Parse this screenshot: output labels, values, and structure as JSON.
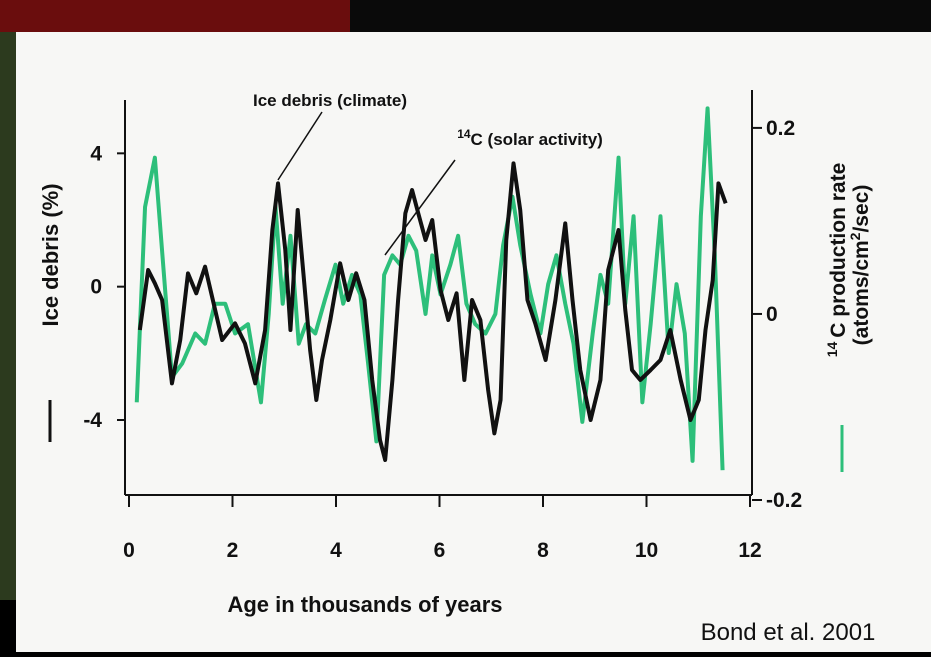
{
  "chart_data": {
    "type": "line",
    "xlabel": "Age in thousands of years",
    "ylabel": "Ice debris (%)",
    "y2label": [
      "14",
      "C production rate",
      "(atoms/cm",
      "2",
      "/sec)"
    ],
    "annotations": [
      "Ice debris (climate)",
      "14",
      "C (solar activity)"
    ],
    "source": "Bond et al. 2001",
    "xlim": [
      0,
      12
    ],
    "xticks": [
      0,
      2,
      4,
      6,
      8,
      10,
      12
    ],
    "ylim": [
      -6.4,
      5.6
    ],
    "yticks": [
      -4,
      0,
      4
    ],
    "y2lim": [
      -0.2,
      0.23
    ],
    "y2ticks": [
      -0.2,
      0,
      0.2
    ],
    "series": [
      {
        "color": "#111111",
        "axis": "y",
        "x": [
          0.21,
          0.37,
          0.5,
          0.64,
          0.83,
          0.99,
          1.14,
          1.3,
          1.47,
          1.62,
          1.8,
          2.05,
          2.24,
          2.44,
          2.63,
          2.77,
          2.88,
          3.02,
          3.12,
          3.26,
          3.37,
          3.5,
          3.62,
          3.73,
          3.89,
          4.08,
          4.24,
          4.39,
          4.55,
          4.7,
          4.85,
          4.95,
          5.09,
          5.2,
          5.34,
          5.47,
          5.59,
          5.73,
          5.86,
          6.02,
          6.17,
          6.33,
          6.48,
          6.63,
          6.79,
          6.94,
          7.06,
          7.18,
          7.29,
          7.43,
          7.56,
          7.7,
          7.85,
          8.05,
          8.24,
          8.43,
          8.57,
          8.72,
          8.92,
          9.11,
          9.26,
          9.46,
          9.59,
          9.72,
          9.88,
          10.08,
          10.27,
          10.46,
          10.66,
          10.85,
          11.01,
          11.14,
          11.28,
          11.39,
          11.53
        ],
        "values": [
          -1.3,
          0.5,
          0.1,
          -0.4,
          -2.9,
          -1.6,
          0.4,
          -0.2,
          0.6,
          -0.4,
          -1.6,
          -1.1,
          -1.7,
          -2.9,
          -1.3,
          1.7,
          3.1,
          1.1,
          -1.3,
          2.3,
          0.4,
          -1.9,
          -3.4,
          -2.2,
          -1.0,
          0.7,
          -0.4,
          0.4,
          -0.4,
          -2.8,
          -4.6,
          -5.2,
          -2.8,
          -0.4,
          2.2,
          2.9,
          2.2,
          1.4,
          2.0,
          -0.1,
          -1.0,
          -0.2,
          -2.8,
          -0.4,
          -1.0,
          -3.1,
          -4.4,
          -3.4,
          1.4,
          3.7,
          2.3,
          -0.4,
          -1.1,
          -2.2,
          -0.4,
          1.9,
          -0.4,
          -2.5,
          -4.0,
          -2.8,
          0.5,
          1.7,
          -0.7,
          -2.5,
          -2.8,
          -2.5,
          -2.2,
          -1.3,
          -2.8,
          -4.0,
          -3.4,
          -1.3,
          0.2,
          3.1,
          2.5
        ]
      },
      {
        "color": "#2dbf7a",
        "axis": "y2",
        "x": [
          0.15,
          0.31,
          0.5,
          0.66,
          0.83,
          1.03,
          1.28,
          1.47,
          1.66,
          1.86,
          2.05,
          2.3,
          2.55,
          2.7,
          2.83,
          2.97,
          3.12,
          3.28,
          3.42,
          3.6,
          3.79,
          3.99,
          4.14,
          4.31,
          4.47,
          4.62,
          4.78,
          4.93,
          5.09,
          5.24,
          5.4,
          5.55,
          5.73,
          5.86,
          6.02,
          6.21,
          6.36,
          6.52,
          6.69,
          6.89,
          7.08,
          7.23,
          7.41,
          7.56,
          7.76,
          7.95,
          8.1,
          8.26,
          8.43,
          8.59,
          8.76,
          8.96,
          9.11,
          9.26,
          9.46,
          9.59,
          9.75,
          9.92,
          10.08,
          10.27,
          10.43,
          10.58,
          10.74,
          10.89,
          11.05,
          11.18,
          11.32,
          11.47
        ],
        "values": [
          -0.095,
          0.115,
          0.168,
          0.053,
          -0.068,
          -0.053,
          -0.021,
          -0.032,
          0.011,
          0.011,
          -0.021,
          -0.011,
          -0.095,
          0.0,
          0.116,
          0.011,
          0.084,
          -0.032,
          -0.011,
          -0.021,
          0.016,
          0.053,
          0.011,
          0.042,
          0.021,
          -0.053,
          -0.137,
          0.042,
          0.063,
          0.053,
          0.084,
          0.068,
          0.0,
          0.063,
          0.021,
          0.053,
          0.084,
          0.011,
          -0.011,
          -0.021,
          0.0,
          0.074,
          0.126,
          0.074,
          0.021,
          -0.021,
          0.032,
          0.063,
          0.011,
          -0.032,
          -0.116,
          -0.021,
          0.042,
          0.011,
          0.168,
          0.011,
          0.105,
          -0.095,
          -0.011,
          0.105,
          -0.042,
          0.032,
          -0.021,
          -0.158,
          0.105,
          0.221,
          0.063,
          -0.168
        ]
      }
    ]
  }
}
